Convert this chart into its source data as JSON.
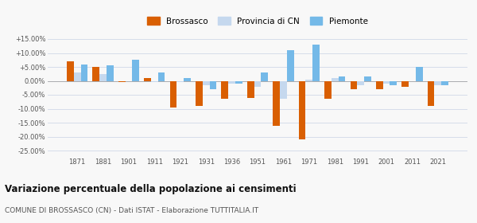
{
  "years": [
    1871,
    1881,
    1901,
    1911,
    1921,
    1931,
    1936,
    1951,
    1961,
    1971,
    1981,
    1991,
    2001,
    2011,
    2021
  ],
  "brossasco": [
    7.0,
    5.0,
    -0.5,
    1.0,
    -9.5,
    -9.0,
    -6.5,
    -6.0,
    -16.0,
    -21.0,
    -6.5,
    -3.0,
    -3.0,
    -2.0,
    -9.0
  ],
  "provincia_cn": [
    3.0,
    2.5,
    0.0,
    -0.5,
    -0.5,
    -1.5,
    -1.0,
    -2.0,
    -6.5,
    0.5,
    1.0,
    -1.5,
    -1.0,
    0.0,
    -1.5
  ],
  "piemonte": [
    6.0,
    5.5,
    7.5,
    3.0,
    1.0,
    -3.0,
    -1.0,
    3.0,
    11.0,
    13.0,
    1.5,
    1.5,
    -1.5,
    5.0,
    -1.5
  ],
  "color_brossasco": "#d95f02",
  "color_provincia": "#c5d8ee",
  "color_piemonte": "#74b9e8",
  "title": "Variazione percentuale della popolazione ai censimenti",
  "subtitle": "COMUNE DI BROSSASCO (CN) - Dati ISTAT - Elaborazione TUTTITALIA.IT",
  "ylim": [
    -27,
    17
  ],
  "yticks": [
    -25,
    -20,
    -15,
    -10,
    -5,
    0,
    5,
    10,
    15
  ],
  "background_color": "#f8f8f8",
  "grid_color": "#d0d8e8"
}
